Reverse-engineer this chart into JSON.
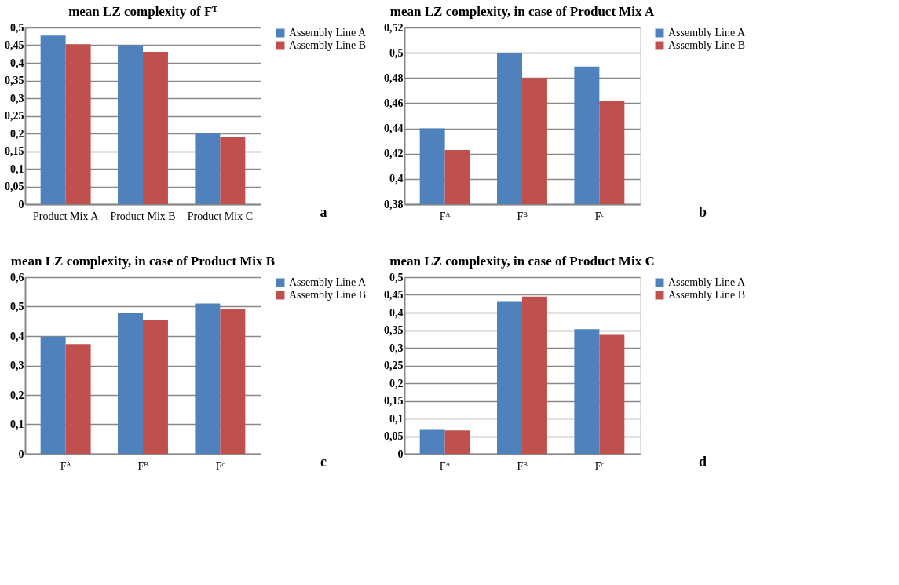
{
  "chart_data": [
    {
      "type": "bar",
      "title": "mean LZ complexity of Fᵀ",
      "categories": [
        "Product Mix A",
        "Product Mix B",
        "Product Mix C"
      ],
      "series": [
        {
          "name": "Assembly Line A",
          "color": "#4f81bd",
          "values": [
            0.477,
            0.45,
            0.2
          ]
        },
        {
          "name": "Assembly Line B",
          "color": "#c0504d",
          "values": [
            0.453,
            0.431,
            0.189
          ]
        }
      ],
      "ylim": [
        0,
        0.5
      ],
      "yticks": [
        {
          "value": 0,
          "label": "0"
        },
        {
          "value": 0.05,
          "label": "0,05"
        },
        {
          "value": 0.1,
          "label": "0,1"
        },
        {
          "value": 0.15,
          "label": "0,15"
        },
        {
          "value": 0.2,
          "label": "0,2"
        },
        {
          "value": 0.25,
          "label": "0,25"
        },
        {
          "value": 0.3,
          "label": "0,3"
        },
        {
          "value": 0.35,
          "label": "0,35"
        },
        {
          "value": 0.4,
          "label": "0,4"
        },
        {
          "value": 0.45,
          "label": "0,45"
        },
        {
          "value": 0.5,
          "label": "0,5"
        }
      ],
      "grid": "y",
      "legend": "right",
      "annotations": [
        "a"
      ]
    },
    {
      "type": "bar",
      "title": "mean LZ complexity, in case of Product Mix A",
      "categories": [
        "Fᴬ",
        "Fᴮ",
        "Fᶜ"
      ],
      "series": [
        {
          "name": "Assembly Line A",
          "color": "#4f81bd",
          "values": [
            0.44,
            0.5,
            0.489
          ]
        },
        {
          "name": "Assembly Line B",
          "color": "#c0504d",
          "values": [
            0.423,
            0.48,
            0.462
          ]
        }
      ],
      "ylim": [
        0.38,
        0.52
      ],
      "yticks": [
        {
          "value": 0.38,
          "label": "0,38"
        },
        {
          "value": 0.4,
          "label": "0,4"
        },
        {
          "value": 0.42,
          "label": "0,42"
        },
        {
          "value": 0.44,
          "label": "0,44"
        },
        {
          "value": 0.46,
          "label": "0,46"
        },
        {
          "value": 0.48,
          "label": "0,48"
        },
        {
          "value": 0.5,
          "label": "0,5"
        },
        {
          "value": 0.52,
          "label": "0,52"
        }
      ],
      "grid": "y",
      "legend": "right",
      "annotations": [
        "b"
      ]
    },
    {
      "type": "bar",
      "title": "mean LZ complexity, in case of Product Mix B",
      "categories": [
        "Fᴬ",
        "Fᴮ",
        "Fᶜ"
      ],
      "series": [
        {
          "name": "Assembly Line A",
          "color": "#4f81bd",
          "values": [
            0.398,
            0.478,
            0.511
          ]
        },
        {
          "name": "Assembly Line B",
          "color": "#c0504d",
          "values": [
            0.373,
            0.454,
            0.492
          ]
        }
      ],
      "ylim": [
        0,
        0.6
      ],
      "yticks": [
        {
          "value": 0,
          "label": "0"
        },
        {
          "value": 0.1,
          "label": "0,1"
        },
        {
          "value": 0.2,
          "label": "0,2"
        },
        {
          "value": 0.3,
          "label": "0,3"
        },
        {
          "value": 0.4,
          "label": "0,4"
        },
        {
          "value": 0.5,
          "label": "0,5"
        },
        {
          "value": 0.6,
          "label": "0,6"
        }
      ],
      "grid": "y",
      "legend": "right",
      "annotations": [
        "c"
      ]
    },
    {
      "type": "bar",
      "title": "mean LZ complexity, in case of Product Mix C",
      "categories": [
        "Fᴬ",
        "Fᴮ",
        "Fᶜ"
      ],
      "series": [
        {
          "name": "Assembly Line A",
          "color": "#4f81bd",
          "values": [
            0.07,
            0.432,
            0.353
          ]
        },
        {
          "name": "Assembly Line B",
          "color": "#c0504d",
          "values": [
            0.066,
            0.445,
            0.339
          ]
        }
      ],
      "ylim": [
        0,
        0.5
      ],
      "yticks": [
        {
          "value": 0,
          "label": "0"
        },
        {
          "value": 0.05,
          "label": "0,05"
        },
        {
          "value": 0.1,
          "label": "0,1"
        },
        {
          "value": 0.15,
          "label": "0,15"
        },
        {
          "value": 0.2,
          "label": "0,2"
        },
        {
          "value": 0.25,
          "label": "0,25"
        },
        {
          "value": 0.3,
          "label": "0,3"
        },
        {
          "value": 0.35,
          "label": "0,35"
        },
        {
          "value": 0.4,
          "label": "0,4"
        },
        {
          "value": 0.45,
          "label": "0,45"
        },
        {
          "value": 0.5,
          "label": "0,5"
        }
      ],
      "grid": "y",
      "legend": "right",
      "annotations": [
        "d"
      ]
    }
  ]
}
